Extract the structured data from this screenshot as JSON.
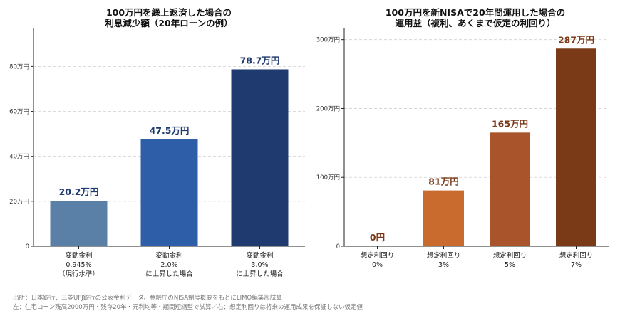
{
  "chart_data": [
    {
      "type": "bar",
      "title": [
        "100万円を繰上返済した場合の",
        "利息減少額（20年ローンの例）"
      ],
      "ylim": [
        0,
        95
      ],
      "yticks": [
        0,
        20,
        40,
        60,
        80
      ],
      "ytick_labels": [
        "0",
        "20万円",
        "40万円",
        "60万円",
        "80万円"
      ],
      "categories": [
        [
          "変動金利",
          "0.945%",
          "（現行水準）"
        ],
        [
          "変動金利",
          "2.0%",
          "に上昇した場合"
        ],
        [
          "変動金利",
          "3.0%",
          "に上昇した場合"
        ]
      ],
      "values": [
        20.2,
        47.5,
        78.7
      ],
      "value_labels": [
        "20.2万円",
        "47.5万円",
        "78.7万円"
      ],
      "colors": [
        "#5b80a8",
        "#2e5ea8",
        "#1e3a6e"
      ],
      "label_color": "#1e3a6e",
      "grid": true
    },
    {
      "type": "bar",
      "title": [
        "100万円を新NISAで20年間運用した場合の",
        "運用益（複利、あくまで仮定の利回り）"
      ],
      "ylim": [
        0,
        310
      ],
      "yticks": [
        0,
        100,
        200,
        300
      ],
      "ytick_labels": [
        "0",
        "100万円",
        "200万円",
        "300万円"
      ],
      "categories": [
        [
          "想定利回り",
          "0%"
        ],
        [
          "想定利回り",
          "3%"
        ],
        [
          "想定利回り",
          "5%"
        ],
        [
          "想定利回り",
          "7%"
        ]
      ],
      "values": [
        0,
        81,
        165,
        287
      ],
      "value_labels": [
        "0円",
        "81万円",
        "165万円",
        "287万円"
      ],
      "colors": [
        "#d07a3a",
        "#c96a2e",
        "#a9542a",
        "#7a3a18"
      ],
      "label_color": "#7a3a18",
      "grid": true
    }
  ],
  "footer": {
    "line1": "出所：日本銀行、三菱UFJ銀行の公表金利データ、金融庁のNISA制度概要をもとにLIMO編集部試算",
    "line2": "左：住宅ローン残高2000万円・残存20年・元利均等・期間短縮型で試算／右：想定利回りは将来の運用成果を保証しない仮定値"
  }
}
